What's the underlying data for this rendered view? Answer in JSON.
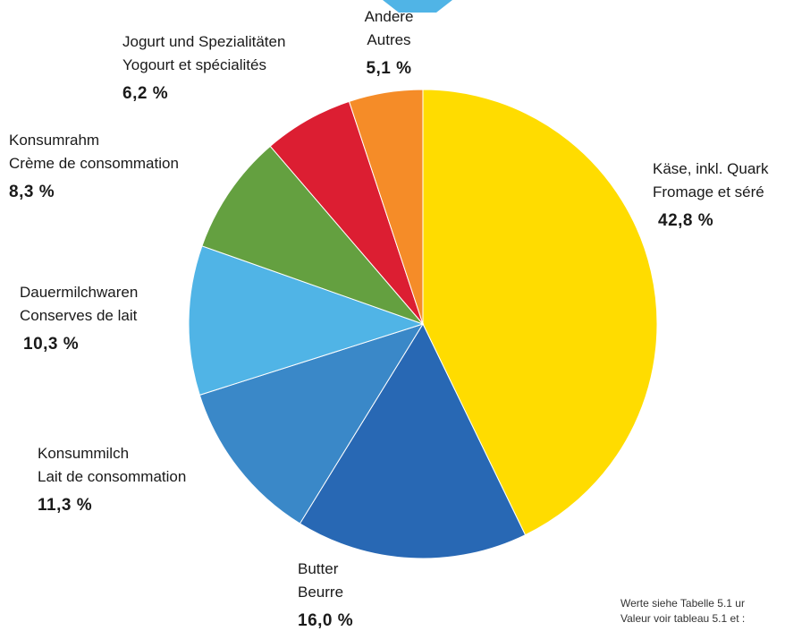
{
  "chart_data": {
    "type": "pie",
    "slices": [
      {
        "label_de": "Käse, inkl. Quark",
        "label_fr": "Fromage et séré",
        "value": 42.8,
        "value_label": "42,8 %",
        "color": "#FFDC00"
      },
      {
        "label_de": "Butter",
        "label_fr": "Beurre",
        "value": 16.0,
        "value_label": "16,0 %",
        "color": "#2868B4"
      },
      {
        "label_de": "Konsummilch",
        "label_fr": "Lait de consommation",
        "value": 11.3,
        "value_label": "11,3 %",
        "color": "#3A88C8"
      },
      {
        "label_de": "Dauermilchwaren",
        "label_fr": "Conserves de lait",
        "value": 10.3,
        "value_label": "10,3 %",
        "color": "#50B4E6"
      },
      {
        "label_de": "Konsumrahm",
        "label_fr": "Crème de consommation",
        "value": 8.3,
        "value_label": "8,3 %",
        "color": "#64A040"
      },
      {
        "label_de": "Jogurt und Spezialitäten",
        "label_fr": "Yogourt et spécialités",
        "value": 6.2,
        "value_label": "6,2 %",
        "color": "#DC1E32"
      },
      {
        "label_de": "Andere",
        "label_fr": "Autres",
        "value": 5.1,
        "value_label": "5,1 %",
        "color": "#F58C28"
      }
    ],
    "start": "12 o'clock",
    "direction": "clockwise"
  },
  "note": {
    "line1": "Werte siehe Tabelle 5.1 ur",
    "line2": "Valeur voir tableau 5.1 et :"
  },
  "top_marker_color": "#50B4E6"
}
